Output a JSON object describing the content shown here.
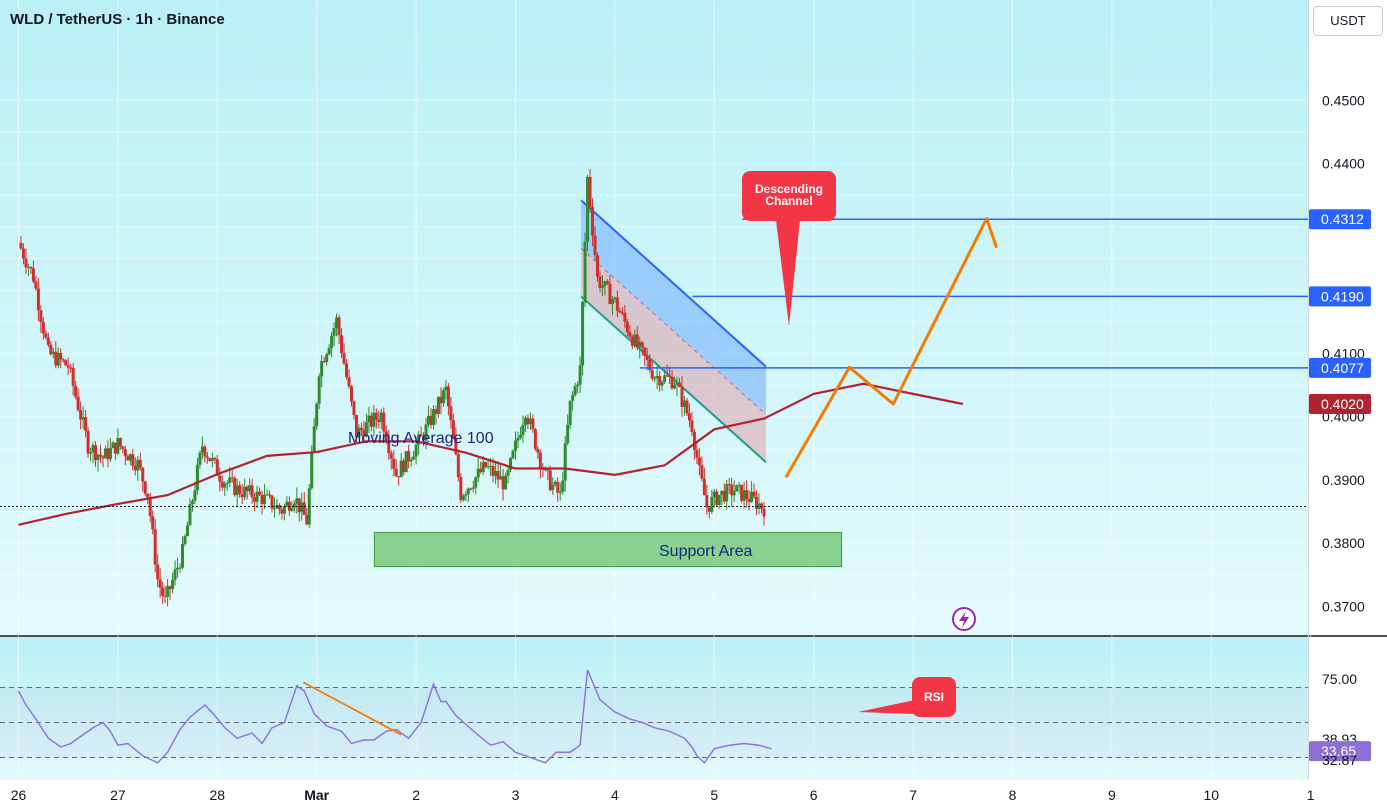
{
  "header": {
    "symbol_title": "WLD / TetherUS · 1h · Binance",
    "currency_button": "USDT"
  },
  "colors": {
    "background_top": "#b9f0f6",
    "background_bottom": "#e3fafc",
    "candle_up": "#2e8b2e",
    "candle_down": "#d12f2f",
    "ma100": "#b2222f",
    "rsi_line": "#8e6fd6",
    "level_lines": "#2962ff",
    "projection": "#f57c00",
    "channel_fill_top": "#5b9dff",
    "channel_fill_bottom": "#e8707a",
    "callout": "#f23645",
    "support_fill": "#6dc36d"
  },
  "chart_data": {
    "type": "candlestick",
    "symbol": "WLD / TetherUS",
    "interval": "1h",
    "exchange": "Binance",
    "x_ticks": [
      "26",
      "27",
      "28",
      "Mar",
      "2",
      "3",
      "4",
      "5",
      "6",
      "7",
      "8",
      "9",
      "10",
      "1"
    ],
    "price_axis": {
      "ticks": [
        "0.4500",
        "0.4400",
        "0.4100",
        "0.4000",
        "0.3900",
        "0.3800",
        "0.3700"
      ],
      "range": [
        0.3655,
        0.4635
      ],
      "current_price": 0.3858
    },
    "price_labels": [
      {
        "value": "0.4312",
        "price": 0.4312,
        "color": "#2962ff"
      },
      {
        "value": "0.4190",
        "price": 0.419,
        "color": "#2962ff"
      },
      {
        "value": "0.4077",
        "price": 0.4077,
        "color": "#2962ff"
      },
      {
        "value": "0.4020",
        "price": 0.402,
        "color": "#b2222f"
      }
    ],
    "horizontal_levels": [
      {
        "price": 0.4312,
        "from_day": 7.28
      },
      {
        "price": 0.419,
        "from_day": 6.78
      },
      {
        "price": 0.4077,
        "from_day": 6.25
      }
    ],
    "annotations": {
      "moving_average": "Moving Average 100",
      "support_area": "Support Area",
      "descending_channel": "Descending Channel",
      "rsi_callout": "RSI"
    },
    "support_zone": {
      "from_day": 3.58,
      "to_day": 8.28,
      "low": 0.3763,
      "high": 0.3817
    },
    "descending_channel": {
      "upper": [
        [
          5.66,
          0.4342
        ],
        [
          7.52,
          0.4079
        ]
      ],
      "lower": [
        [
          5.66,
          0.419
        ],
        [
          7.52,
          0.3928
        ]
      ],
      "start_day": 5.66,
      "end_day": 7.52
    },
    "projection_path": [
      [
        7.72,
        0.3904
      ],
      [
        8.36,
        0.4078
      ],
      [
        8.8,
        0.402
      ],
      [
        9.74,
        0.4313
      ],
      [
        9.84,
        0.4267
      ]
    ],
    "ma100": [
      [
        0,
        0.3829
      ],
      [
        0.5,
        0.3847
      ],
      [
        1,
        0.3862
      ],
      [
        1.5,
        0.3876
      ],
      [
        2,
        0.3909
      ],
      [
        2.5,
        0.3938
      ],
      [
        3,
        0.3944
      ],
      [
        3.5,
        0.3961
      ],
      [
        4,
        0.3961
      ],
      [
        4.5,
        0.3943
      ],
      [
        5,
        0.3918
      ],
      [
        5.5,
        0.3918
      ],
      [
        6,
        0.3908
      ],
      [
        6.5,
        0.3923
      ],
      [
        7,
        0.398
      ],
      [
        7.5,
        0.3997
      ],
      [
        8,
        0.4036
      ],
      [
        8.5,
        0.4052
      ],
      [
        9,
        0.4036
      ],
      [
        9.5,
        0.402
      ]
    ],
    "close_series": [
      [
        0,
        0.4275
      ],
      [
        0.3,
        0.4221
      ],
      [
        0.6,
        0.41
      ],
      [
        1,
        0.408
      ],
      [
        1.4,
        0.3955
      ],
      [
        1.7,
        0.3935
      ],
      [
        2,
        0.3957
      ],
      [
        2.4,
        0.3925
      ],
      [
        2.6,
        0.3878
      ],
      [
        2.8,
        0.3743
      ],
      [
        2.95,
        0.3707
      ],
      [
        3.3,
        0.3785
      ],
      [
        3.7,
        0.3955
      ],
      [
        4.1,
        0.3901
      ],
      [
        4.4,
        0.3885
      ],
      [
        4.9,
        0.3872
      ],
      [
        5.3,
        0.3852
      ],
      [
        5.55,
        0.3874
      ],
      [
        5.8,
        0.3835
      ],
      [
        6.05,
        0.4076
      ],
      [
        6.4,
        0.4152
      ],
      [
        6.8,
        0.3973
      ],
      [
        7.3,
        0.4004
      ],
      [
        7.6,
        0.3909
      ],
      [
        8.1,
        0.3965
      ],
      [
        8.6,
        0.4042
      ],
      [
        8.9,
        0.3878
      ],
      [
        9.4,
        0.3921
      ],
      [
        9.8,
        0.3893
      ],
      [
        10.2,
        0.4012
      ],
      [
        10.6,
        0.3907
      ],
      [
        10.9,
        0.3874
      ],
      [
        11.1,
        0.4018
      ],
      [
        11.3,
        0.4075
      ],
      [
        11.45,
        0.4377
      ],
      [
        11.65,
        0.4218
      ],
      [
        12.0,
        0.4181
      ],
      [
        12.4,
        0.4117
      ],
      [
        12.8,
        0.4065
      ],
      [
        13.2,
        0.4057
      ],
      [
        13.55,
        0.3986
      ],
      [
        13.7,
        0.3911
      ],
      [
        13.85,
        0.3858
      ],
      [
        14.1,
        0.3876
      ],
      [
        14.4,
        0.3884
      ],
      [
        14.7,
        0.3872
      ],
      [
        15.0,
        0.3856
      ]
    ],
    "rsi": {
      "axis_ticks": [
        "75.00"
      ],
      "labels": [
        {
          "value": "38.93",
          "level": 40.5,
          "boxed": false
        },
        {
          "value": "33.65",
          "level": 33.65,
          "boxed": true,
          "color": "#8e6fd6"
        },
        {
          "value": "32.87",
          "level": 28.5,
          "boxed": false
        }
      ],
      "bands": [
        70,
        50,
        30
      ],
      "values": [
        [
          0,
          68
        ],
        [
          0.15,
          60
        ],
        [
          0.35,
          52
        ],
        [
          0.6,
          41
        ],
        [
          0.85,
          36
        ],
        [
          1.05,
          38
        ],
        [
          1.3,
          43
        ],
        [
          1.5,
          47
        ],
        [
          1.7,
          50
        ],
        [
          1.85,
          45
        ],
        [
          2,
          37
        ],
        [
          2.2,
          38
        ],
        [
          2.5,
          31
        ],
        [
          2.8,
          27
        ],
        [
          3,
          33
        ],
        [
          3.25,
          46
        ],
        [
          3.45,
          53
        ],
        [
          3.75,
          60
        ],
        [
          3.95,
          54
        ],
        [
          4.15,
          47
        ],
        [
          4.4,
          41
        ],
        [
          4.7,
          44
        ],
        [
          4.9,
          38
        ],
        [
          5.1,
          47
        ],
        [
          5.35,
          50
        ],
        [
          5.6,
          71
        ],
        [
          5.75,
          68
        ],
        [
          5.95,
          55
        ],
        [
          6.2,
          48
        ],
        [
          6.5,
          45
        ],
        [
          6.7,
          38
        ],
        [
          6.95,
          40
        ],
        [
          7.15,
          40
        ],
        [
          7.4,
          45
        ],
        [
          7.6,
          46
        ],
        [
          7.85,
          41
        ],
        [
          8.1,
          50
        ],
        [
          8.35,
          72
        ],
        [
          8.5,
          62
        ],
        [
          8.6,
          62
        ],
        [
          8.8,
          54
        ],
        [
          9.2,
          44
        ],
        [
          9.5,
          37
        ],
        [
          9.75,
          39
        ],
        [
          10.0,
          33
        ],
        [
          10.3,
          30
        ],
        [
          10.6,
          27
        ],
        [
          10.82,
          33
        ],
        [
          11.1,
          33
        ],
        [
          11.3,
          37
        ],
        [
          11.45,
          80
        ],
        [
          11.7,
          63
        ],
        [
          12.0,
          56
        ],
        [
          12.3,
          52
        ],
        [
          12.55,
          50
        ],
        [
          12.8,
          47
        ],
        [
          13.1,
          45
        ],
        [
          13.4,
          41
        ],
        [
          13.55,
          36
        ],
        [
          13.65,
          31
        ],
        [
          13.8,
          27
        ],
        [
          14.0,
          35
        ],
        [
          14.3,
          37
        ],
        [
          14.6,
          38
        ],
        [
          14.9,
          37
        ],
        [
          15.15,
          35
        ]
      ],
      "trendline": [
        [
          5.73,
          73
        ],
        [
          7.7,
          43
        ]
      ]
    }
  }
}
